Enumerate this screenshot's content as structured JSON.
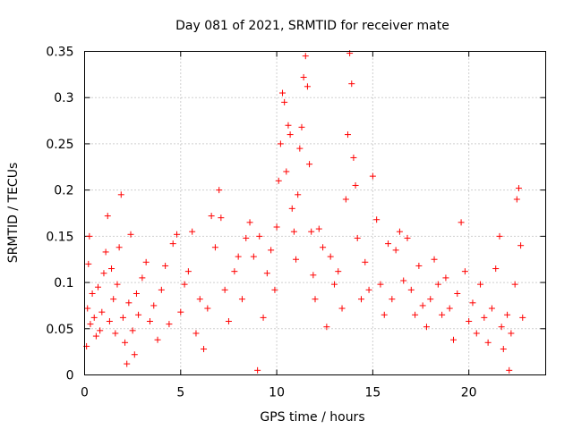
{
  "chart_data": {
    "type": "scatter",
    "title": "Day 081 of 2021, SRMTID for receiver mate",
    "xlabel": "GPS time / hours",
    "ylabel": "SRMTID / TECUs",
    "xlim": [
      0,
      24
    ],
    "ylim": [
      0,
      0.35
    ],
    "x_ticks": [
      0,
      5,
      10,
      15,
      20
    ],
    "x_tick_labels": [
      "0",
      "5",
      "10",
      "15",
      "20"
    ],
    "y_ticks": [
      0,
      0.05,
      0.1,
      0.15,
      0.2,
      0.25,
      0.3,
      0.35
    ],
    "y_tick_labels": [
      "0",
      "0.05",
      "0.1",
      "0.15",
      "0.2",
      "0.25",
      "0.3",
      "0.35"
    ],
    "grid": true,
    "marker": "+",
    "color": "#ff0000",
    "series": [
      {
        "name": "SRMTID",
        "points": [
          [
            0.1,
            0.031
          ],
          [
            0.15,
            0.072
          ],
          [
            0.2,
            0.12
          ],
          [
            0.25,
            0.15
          ],
          [
            0.3,
            0.055
          ],
          [
            0.4,
            0.088
          ],
          [
            0.5,
            0.062
          ],
          [
            0.6,
            0.042
          ],
          [
            0.7,
            0.095
          ],
          [
            0.8,
            0.048
          ],
          [
            0.9,
            0.068
          ],
          [
            1.0,
            0.11
          ],
          [
            1.1,
            0.133
          ],
          [
            1.2,
            0.172
          ],
          [
            1.3,
            0.058
          ],
          [
            1.4,
            0.115
          ],
          [
            1.5,
            0.082
          ],
          [
            1.6,
            0.045
          ],
          [
            1.7,
            0.098
          ],
          [
            1.8,
            0.138
          ],
          [
            1.9,
            0.195
          ],
          [
            2.0,
            0.062
          ],
          [
            2.1,
            0.035
          ],
          [
            2.2,
            0.012
          ],
          [
            2.3,
            0.078
          ],
          [
            2.4,
            0.152
          ],
          [
            2.5,
            0.048
          ],
          [
            2.6,
            0.022
          ],
          [
            2.7,
            0.088
          ],
          [
            2.8,
            0.065
          ],
          [
            3.0,
            0.105
          ],
          [
            3.2,
            0.122
          ],
          [
            3.4,
            0.058
          ],
          [
            3.6,
            0.075
          ],
          [
            3.8,
            0.038
          ],
          [
            4.0,
            0.092
          ],
          [
            4.2,
            0.118
          ],
          [
            4.4,
            0.055
          ],
          [
            4.6,
            0.142
          ],
          [
            4.8,
            0.152
          ],
          [
            5.0,
            0.068
          ],
          [
            5.2,
            0.098
          ],
          [
            5.4,
            0.112
          ],
          [
            5.6,
            0.155
          ],
          [
            5.8,
            0.045
          ],
          [
            6.0,
            0.082
          ],
          [
            6.2,
            0.028
          ],
          [
            6.4,
            0.072
          ],
          [
            6.6,
            0.172
          ],
          [
            6.8,
            0.138
          ],
          [
            7.0,
            0.2
          ],
          [
            7.1,
            0.17
          ],
          [
            7.3,
            0.092
          ],
          [
            7.5,
            0.058
          ],
          [
            7.8,
            0.112
          ],
          [
            8.0,
            0.128
          ],
          [
            8.2,
            0.082
          ],
          [
            8.4,
            0.148
          ],
          [
            8.6,
            0.165
          ],
          [
            8.8,
            0.128
          ],
          [
            9.0,
            0.005
          ],
          [
            9.1,
            0.15
          ],
          [
            9.3,
            0.062
          ],
          [
            9.5,
            0.11
          ],
          [
            9.7,
            0.135
          ],
          [
            9.9,
            0.092
          ],
          [
            10.0,
            0.16
          ],
          [
            10.1,
            0.21
          ],
          [
            10.2,
            0.25
          ],
          [
            10.3,
            0.305
          ],
          [
            10.4,
            0.295
          ],
          [
            10.5,
            0.22
          ],
          [
            10.6,
            0.27
          ],
          [
            10.7,
            0.26
          ],
          [
            10.8,
            0.18
          ],
          [
            10.9,
            0.155
          ],
          [
            11.0,
            0.125
          ],
          [
            11.1,
            0.195
          ],
          [
            11.2,
            0.245
          ],
          [
            11.3,
            0.268
          ],
          [
            11.4,
            0.322
          ],
          [
            11.5,
            0.345
          ],
          [
            11.6,
            0.312
          ],
          [
            11.7,
            0.228
          ],
          [
            11.8,
            0.155
          ],
          [
            11.9,
            0.108
          ],
          [
            12.0,
            0.082
          ],
          [
            12.2,
            0.158
          ],
          [
            12.4,
            0.138
          ],
          [
            12.6,
            0.052
          ],
          [
            12.8,
            0.128
          ],
          [
            13.0,
            0.098
          ],
          [
            13.2,
            0.112
          ],
          [
            13.4,
            0.072
          ],
          [
            13.6,
            0.19
          ],
          [
            13.7,
            0.26
          ],
          [
            13.8,
            0.348
          ],
          [
            13.9,
            0.315
          ],
          [
            14.0,
            0.235
          ],
          [
            14.1,
            0.205
          ],
          [
            14.2,
            0.148
          ],
          [
            14.4,
            0.082
          ],
          [
            14.6,
            0.122
          ],
          [
            14.8,
            0.092
          ],
          [
            15.0,
            0.215
          ],
          [
            15.2,
            0.168
          ],
          [
            15.4,
            0.098
          ],
          [
            15.6,
            0.065
          ],
          [
            15.8,
            0.142
          ],
          [
            16.0,
            0.082
          ],
          [
            16.2,
            0.135
          ],
          [
            16.4,
            0.155
          ],
          [
            16.6,
            0.102
          ],
          [
            16.8,
            0.148
          ],
          [
            17.0,
            0.092
          ],
          [
            17.2,
            0.065
          ],
          [
            17.4,
            0.118
          ],
          [
            17.6,
            0.075
          ],
          [
            17.8,
            0.052
          ],
          [
            18.0,
            0.082
          ],
          [
            18.2,
            0.125
          ],
          [
            18.4,
            0.098
          ],
          [
            18.6,
            0.065
          ],
          [
            18.8,
            0.105
          ],
          [
            19.0,
            0.072
          ],
          [
            19.2,
            0.038
          ],
          [
            19.4,
            0.088
          ],
          [
            19.6,
            0.165
          ],
          [
            19.8,
            0.112
          ],
          [
            20.0,
            0.058
          ],
          [
            20.2,
            0.078
          ],
          [
            20.4,
            0.045
          ],
          [
            20.6,
            0.098
          ],
          [
            20.8,
            0.062
          ],
          [
            21.0,
            0.035
          ],
          [
            21.2,
            0.072
          ],
          [
            21.4,
            0.115
          ],
          [
            21.6,
            0.15
          ],
          [
            21.7,
            0.052
          ],
          [
            21.8,
            0.028
          ],
          [
            22.0,
            0.065
          ],
          [
            22.1,
            0.005
          ],
          [
            22.2,
            0.045
          ],
          [
            22.4,
            0.098
          ],
          [
            22.5,
            0.19
          ],
          [
            22.6,
            0.202
          ],
          [
            22.7,
            0.14
          ],
          [
            22.8,
            0.062
          ]
        ]
      }
    ]
  }
}
